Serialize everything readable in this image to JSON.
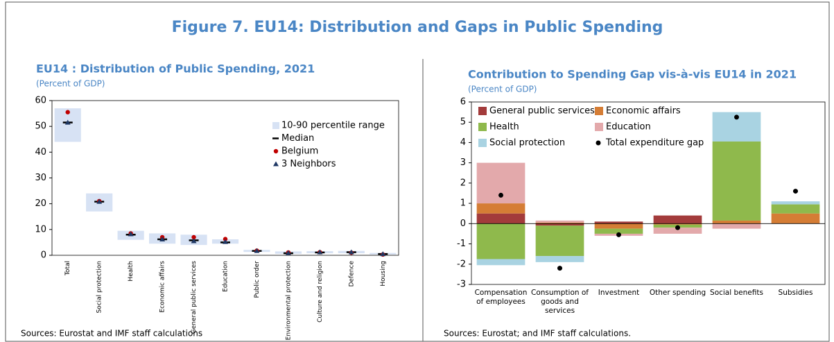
{
  "title": "Figure 7. EU14: Distribution and Gaps in Public Spending",
  "chart_data": [
    {
      "type": "range",
      "title": "EU14 : Distribution of Public Spending, 2021",
      "subtitle": "(Percent of GDP)",
      "source": "Sources: Eurostat and IMF staff calculations",
      "categories": [
        "Total",
        "Social protection",
        "Health",
        "Economic affairs",
        "General public services",
        "Education",
        "Public order",
        "Environmental protection",
        "Culture and religion",
        "Defence",
        "Housing"
      ],
      "ylim": [
        0,
        60
      ],
      "yticks": [
        0,
        10,
        20,
        30,
        40,
        50,
        60
      ],
      "legend": "upper right",
      "series": [
        {
          "name": "10-90 percentile range",
          "color": "#d7e2f4",
          "marker": "range",
          "values": [
            [
              44,
              57
            ],
            [
              17,
              24
            ],
            [
              6,
              9.5
            ],
            [
              4.5,
              8.5
            ],
            [
              4,
              8
            ],
            [
              4.5,
              6.2
            ],
            [
              1.3,
              2.1
            ],
            [
              0.6,
              1.5
            ],
            [
              0.8,
              1.6
            ],
            [
              0.8,
              1.7
            ],
            [
              0.3,
              0.9
            ]
          ]
        },
        {
          "name": "Median",
          "color": "#000000",
          "marker": "dash",
          "values": [
            51.5,
            20.8,
            8,
            6.2,
            5.8,
            5,
            1.7,
            0.8,
            1.1,
            1.2,
            0.5
          ]
        },
        {
          "name": "Belgium",
          "color": "#c00000",
          "marker": "circle",
          "values": [
            55.5,
            21,
            8.5,
            7,
            7,
            6.3,
            1.8,
            1.1,
            1.2,
            1,
            0.3
          ]
        },
        {
          "name": "3 Neighbors",
          "color": "#1f3864",
          "marker": "triangle",
          "values": [
            51.5,
            20.8,
            8.2,
            6.2,
            5.5,
            5.2,
            1.7,
            0.9,
            1.2,
            1.2,
            0.5
          ]
        }
      ]
    },
    {
      "type": "bar",
      "stacked": true,
      "title": "Contribution to Spending Gap vis-à-vis EU14 in 2021",
      "subtitle": "(Percent of GDP)",
      "source": "Sources: Eurostat; and IMF staff calculations.",
      "categories": [
        "Compensation of employees",
        "Consumption of goods and services",
        "Investment",
        "Other spending",
        "Social benefits",
        "Subsidies"
      ],
      "ylim": [
        -3,
        6
      ],
      "yticks": [
        -3,
        -2,
        -1,
        0,
        1,
        2,
        3,
        4,
        5,
        6
      ],
      "legend": "upper left",
      "series": [
        {
          "name": "General public services",
          "color": "#a33b3b",
          "values": [
            0.5,
            -0.1,
            0.1,
            0.4,
            0,
            0
          ]
        },
        {
          "name": "Economic affairs",
          "color": "#d57d35",
          "values": [
            0.5,
            0.05,
            -0.25,
            -0.05,
            0.15,
            0.5
          ]
        },
        {
          "name": "Health",
          "color": "#8fb94c",
          "values": [
            -1.75,
            -1.5,
            -0.25,
            -0.15,
            3.9,
            0.45
          ]
        },
        {
          "name": "Education",
          "color": "#e3a9ab",
          "values": [
            2,
            0.1,
            -0.1,
            -0.3,
            -0.25,
            0
          ]
        },
        {
          "name": "Social protection",
          "color": "#a9d3e2",
          "values": [
            -0.3,
            -0.3,
            0,
            0,
            1.45,
            0.15
          ]
        },
        {
          "name": "Total expenditure gap",
          "color": "#000000",
          "type": "scatter",
          "values": [
            1.4,
            -2.2,
            -0.55,
            -0.2,
            5.25,
            1.6
          ]
        }
      ]
    }
  ]
}
